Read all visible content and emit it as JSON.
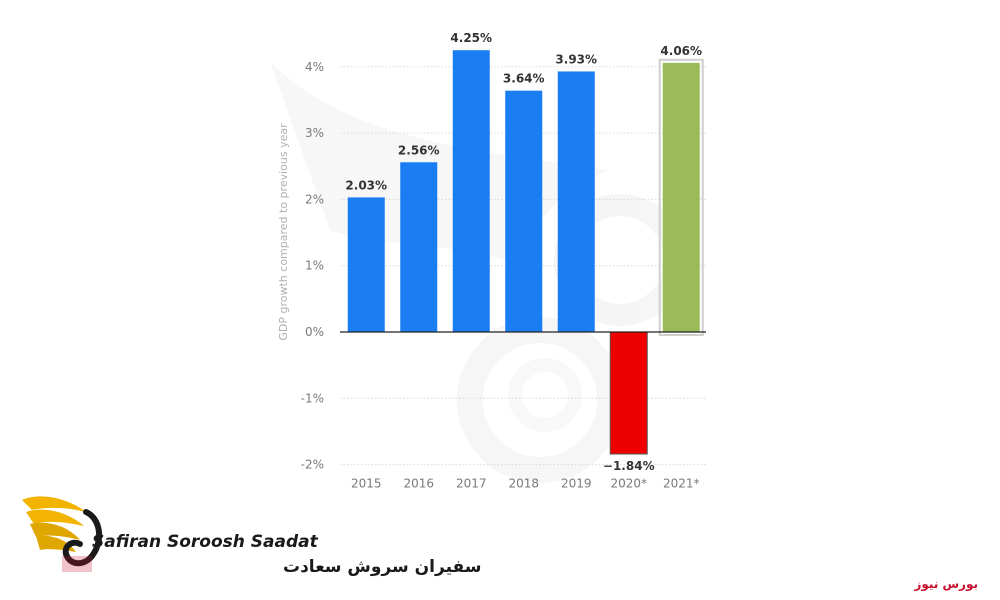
{
  "chart_data": {
    "type": "bar",
    "categories": [
      "2015",
      "2016",
      "2017",
      "2018",
      "2019",
      "2020*",
      "2021*"
    ],
    "values": [
      2.03,
      2.56,
      4.25,
      3.64,
      3.93,
      -1.84,
      4.06
    ],
    "data_labels": [
      "2.03%",
      "2.56%",
      "4.25%",
      "3.64%",
      "3.93%",
      "−1.84%",
      "4.06%"
    ],
    "bar_colors": [
      "#1a7df2",
      "#1a7df2",
      "#1a7df2",
      "#1a7df2",
      "#1a7df2",
      "#ee0000",
      "#9bbb59"
    ],
    "ylabel": "GDP growth compared to previous year",
    "ylim": [
      -2,
      4.5
    ],
    "yticks": [
      4,
      3,
      2,
      1,
      0,
      -1,
      -2
    ],
    "ytick_labels": [
      "4%",
      "3%",
      "2%",
      "1%",
      "0%",
      "-1%",
      "-2%"
    ],
    "grid": true
  },
  "logo": {
    "name_en": "Safiran Soroosh Saadat",
    "name_fa": "سفیران سروش سعادت",
    "colors": {
      "wing": "#f2b400",
      "text": "#1a1a1a",
      "accent": "#c8102e"
    }
  },
  "watermark": {
    "text": "بورس نیوز"
  }
}
